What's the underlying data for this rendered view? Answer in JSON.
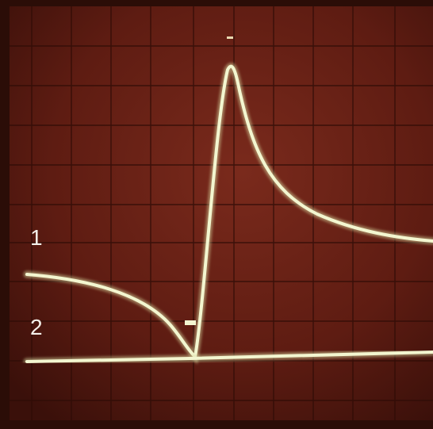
{
  "labels": {
    "trace_1": "1",
    "trace_2": "2"
  }
}
